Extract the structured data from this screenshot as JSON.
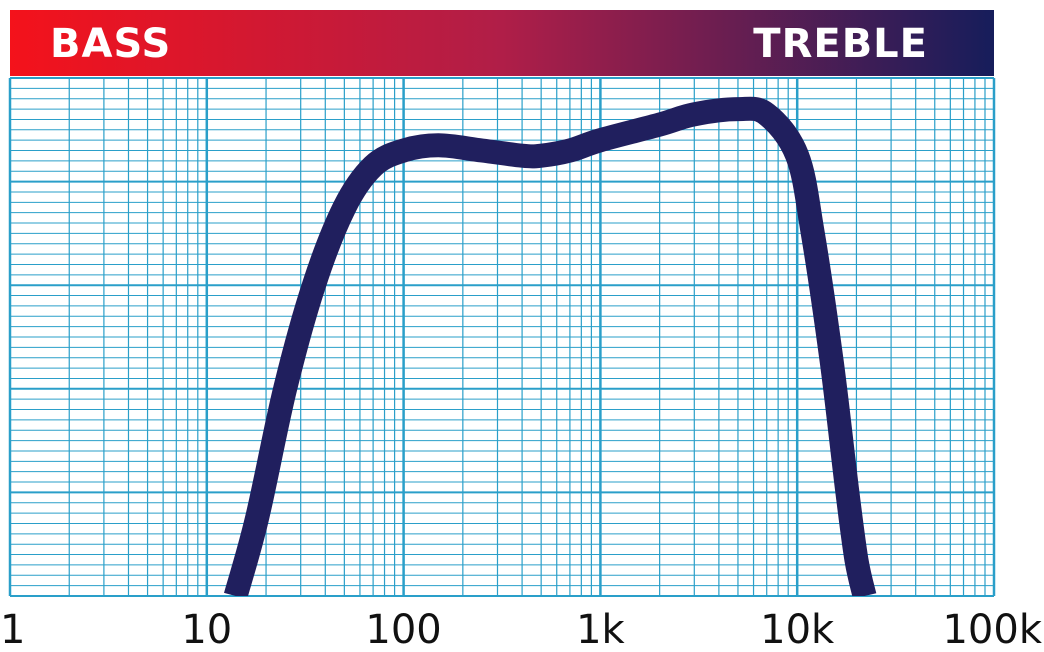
{
  "header": {
    "left_label": "BASS",
    "right_label": "TREBLE",
    "gradient_start": "#f4121b",
    "gradient_mid": "#b01e48",
    "gradient_end": "#161d5b"
  },
  "colors": {
    "grid": "#2a9fc9",
    "curve": "#201f5e"
  },
  "chart_data": {
    "type": "line",
    "x_scale": "log",
    "xlim": [
      1,
      100000
    ],
    "ylim": [
      0,
      100
    ],
    "grid": true,
    "x_tick_values": [
      1,
      10,
      100,
      1000,
      10000,
      100000
    ],
    "x_tick_labels": [
      "1",
      "10",
      "100",
      "1k",
      "10k",
      "100k"
    ],
    "series": [
      {
        "x": [
          14,
          18,
          25,
          35,
          50,
          70,
          100,
          150,
          250,
          400,
          500,
          700,
          1000,
          2000,
          3000,
          5000,
          7000,
          10000,
          12000,
          15000,
          18000,
          20000,
          22000
        ],
        "y": [
          0,
          15,
          40,
          60,
          75,
          83,
          86,
          87,
          86,
          85,
          85,
          86,
          88,
          91,
          93,
          94,
          93,
          85,
          70,
          45,
          20,
          7,
          0
        ]
      }
    ]
  }
}
